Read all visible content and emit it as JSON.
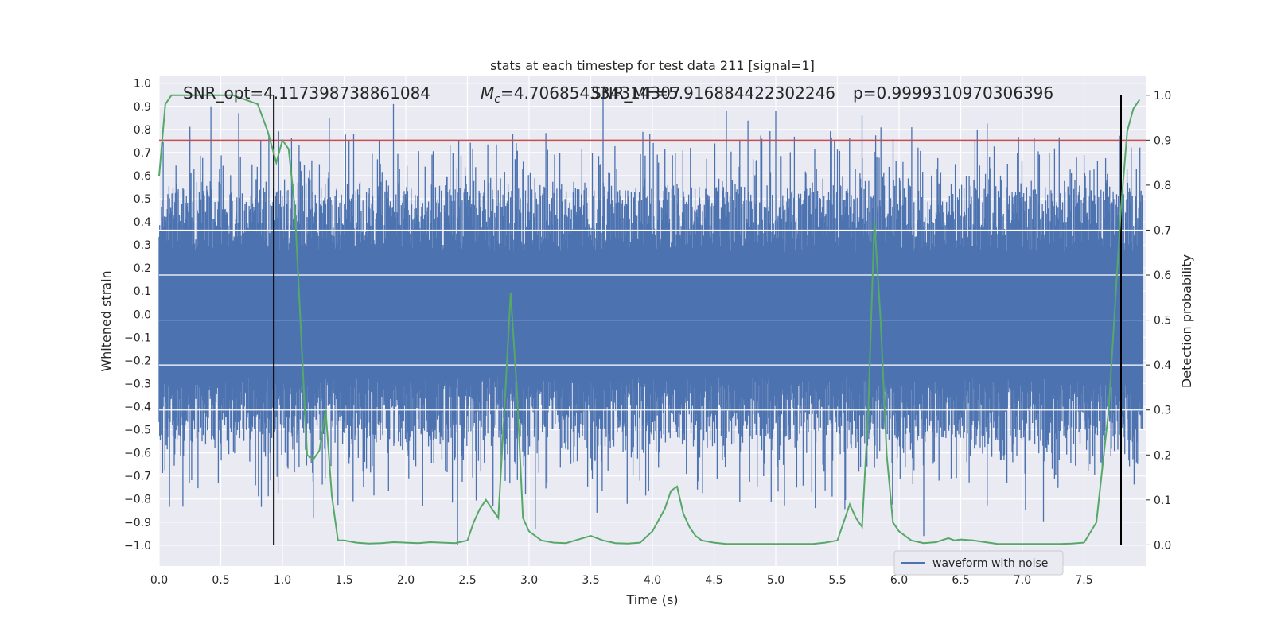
{
  "chart_data": {
    "type": "line",
    "title": "stats at each timestep for test data 211 [signal=1]",
    "xlabel": "Time (s)",
    "ylabel": "Whitened strain",
    "y2label": "Detection probability",
    "xlim": [
      0.0,
      8.0
    ],
    "ylim": [
      -1.09,
      1.03
    ],
    "y2lim": [
      -0.047,
      1.042
    ],
    "xticks": [
      "0.0",
      "0.5",
      "1.0",
      "1.5",
      "2.0",
      "2.5",
      "3.0",
      "3.5",
      "4.0",
      "4.5",
      "5.0",
      "5.5",
      "6.0",
      "6.5",
      "7.0",
      "7.5"
    ],
    "xtick_values": [
      0.0,
      0.5,
      1.0,
      1.5,
      2.0,
      2.5,
      3.0,
      3.5,
      4.0,
      4.5,
      5.0,
      5.5,
      6.0,
      6.5,
      7.0,
      7.5
    ],
    "yticks": [
      "1.0",
      "0.9",
      "0.8",
      "0.7",
      "0.6",
      "0.5",
      "0.4",
      "0.3",
      "0.2",
      "0.1",
      "0.0",
      "−0.1",
      "−0.2",
      "−0.3",
      "−0.4",
      "−0.5",
      "−0.6",
      "−0.7",
      "−0.8",
      "−0.9",
      "−1.0"
    ],
    "ytick_values": [
      1.0,
      0.9,
      0.8,
      0.7,
      0.6,
      0.5,
      0.4,
      0.3,
      0.2,
      0.1,
      0.0,
      -0.1,
      -0.2,
      -0.3,
      -0.4,
      -0.5,
      -0.6,
      -0.7,
      -0.8,
      -0.9,
      -1.0
    ],
    "y2ticks": [
      "1.0",
      "0.9",
      "0.8",
      "0.7",
      "0.6",
      "0.5",
      "0.4",
      "0.3",
      "0.2",
      "0.1",
      "0.0"
    ],
    "y2tick_values": [
      1.0,
      0.9,
      0.8,
      0.7,
      0.6,
      0.5,
      0.4,
      0.3,
      0.2,
      0.1,
      0.0
    ],
    "grid": true,
    "legend_placement": "lower-right",
    "annotations": [
      "SNR_opt=4.117398738861084",
      "M_c=4.706854334314307",
      "SNR_MF=5.916884422302246",
      "p=0.9999310970306396"
    ],
    "vertical_lines_x": [
      0.93,
      7.8
    ],
    "threshold_probability": 0.9,
    "waveform": {
      "name": "waveform with noise",
      "color": "#4c72b0",
      "description_envelope": {
        "core_half_width": 0.27,
        "typical_peak": 0.55
      },
      "notable_peaks": [
        {
          "x": 0.42,
          "y": 0.9
        },
        {
          "x": 1.38,
          "y": 0.85
        },
        {
          "x": 1.9,
          "y": 0.91
        },
        {
          "x": 3.6,
          "y": 0.97
        },
        {
          "x": 4.6,
          "y": 0.88
        },
        {
          "x": 5.0,
          "y": 0.88
        },
        {
          "x": 5.7,
          "y": 0.86
        },
        {
          "x": 1.25,
          "y": -0.88
        },
        {
          "x": 2.42,
          "y": -1.0
        },
        {
          "x": 3.05,
          "y": -0.93
        },
        {
          "x": 6.2,
          "y": -0.96
        }
      ]
    },
    "probability_series": {
      "color": "#55a868",
      "x": [
        0.0,
        0.05,
        0.1,
        0.2,
        0.3,
        0.4,
        0.5,
        0.6,
        0.7,
        0.8,
        0.88,
        0.95,
        1.0,
        1.05,
        1.1,
        1.2,
        1.25,
        1.3,
        1.35,
        1.4,
        1.45,
        1.5,
        1.6,
        1.7,
        1.8,
        1.9,
        2.0,
        2.1,
        2.2,
        2.3,
        2.4,
        2.5,
        2.55,
        2.6,
        2.65,
        2.7,
        2.75,
        2.8,
        2.85,
        2.9,
        2.95,
        3.0,
        3.1,
        3.2,
        3.3,
        3.4,
        3.5,
        3.6,
        3.7,
        3.8,
        3.9,
        4.0,
        4.1,
        4.15,
        4.2,
        4.25,
        4.3,
        4.35,
        4.4,
        4.5,
        4.6,
        4.7,
        4.8,
        4.9,
        5.0,
        5.1,
        5.2,
        5.3,
        5.4,
        5.5,
        5.55,
        5.6,
        5.65,
        5.7,
        5.75,
        5.8,
        5.85,
        5.9,
        5.95,
        6.0,
        6.1,
        6.2,
        6.3,
        6.4,
        6.45,
        6.5,
        6.6,
        6.7,
        6.8,
        6.9,
        7.0,
        7.1,
        7.2,
        7.3,
        7.4,
        7.5,
        7.6,
        7.7,
        7.8,
        7.85,
        7.9,
        7.95
      ],
      "y": [
        0.82,
        0.98,
        1.0,
        1.0,
        1.0,
        1.0,
        1.0,
        1.0,
        0.99,
        0.98,
        0.92,
        0.85,
        0.9,
        0.88,
        0.75,
        0.2,
        0.19,
        0.21,
        0.3,
        0.11,
        0.01,
        0.01,
        0.005,
        0.003,
        0.004,
        0.006,
        0.005,
        0.004,
        0.006,
        0.005,
        0.004,
        0.01,
        0.05,
        0.08,
        0.1,
        0.08,
        0.06,
        0.3,
        0.56,
        0.35,
        0.06,
        0.03,
        0.01,
        0.005,
        0.004,
        0.012,
        0.02,
        0.01,
        0.004,
        0.003,
        0.005,
        0.03,
        0.08,
        0.12,
        0.13,
        0.07,
        0.04,
        0.02,
        0.01,
        0.005,
        0.002,
        0.002,
        0.002,
        0.002,
        0.002,
        0.002,
        0.002,
        0.002,
        0.005,
        0.01,
        0.05,
        0.09,
        0.06,
        0.04,
        0.3,
        0.72,
        0.5,
        0.2,
        0.05,
        0.03,
        0.01,
        0.004,
        0.006,
        0.015,
        0.01,
        0.012,
        0.01,
        0.006,
        0.002,
        0.002,
        0.002,
        0.002,
        0.002,
        0.002,
        0.003,
        0.005,
        0.05,
        0.3,
        0.75,
        0.92,
        0.97,
        0.99
      ]
    }
  }
}
